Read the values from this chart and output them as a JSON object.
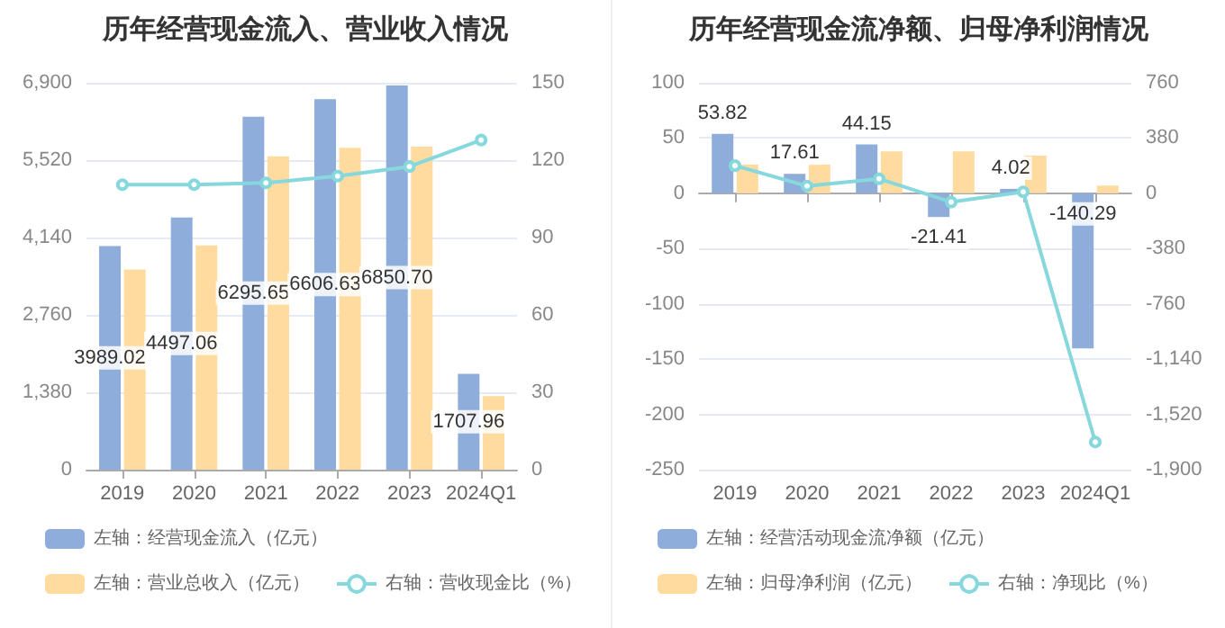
{
  "chart_data": [
    {
      "type": "bar",
      "title": "历年经营现金流入、营业收入情况",
      "categories": [
        "2019",
        "2020",
        "2021",
        "2022",
        "2023",
        "2024Q1"
      ],
      "series": [
        {
          "name": "左轴：经营现金流入（亿元）",
          "color": "#8eadda",
          "values": [
            3989.02,
            4497.06,
            6295.65,
            6606.63,
            6850.7,
            1707.96
          ],
          "value_labels": [
            "3989.02",
            "4497.06",
            "6295.65",
            "6606.63",
            "6850.70",
            "1707.96"
          ]
        },
        {
          "name": "左轴：营业总收入（亿元）",
          "color": "#ffdb9f",
          "values": [
            3570,
            4000,
            5590,
            5740,
            5760,
            1310
          ]
        },
        {
          "name": "右轴：营收现金比（%）",
          "type": "line",
          "axis": "y2",
          "color": "#86d8dc",
          "values": [
            110.5,
            110.5,
            111.2,
            113.8,
            117.5,
            127.8
          ]
        }
      ],
      "ylim": [
        0,
        6900
      ],
      "yticks": [
        0,
        {
          "value": 1380,
          "label": "1,380"
        },
        {
          "value": 2760,
          "label": "2,760"
        },
        {
          "value": 4140,
          "label": "4,140"
        },
        {
          "value": 5520,
          "label": "5,520"
        },
        {
          "value": 6900,
          "label": "6,900"
        }
      ],
      "y2lim": [
        0,
        150
      ],
      "y2ticks": [
        0,
        30,
        60,
        90,
        120,
        150
      ],
      "grid": "y",
      "legend": "bottom",
      "marker": "circle"
    },
    {
      "type": "bar",
      "title": "历年经营现金流净额、归母净利润情况",
      "categories": [
        "2019",
        "2020",
        "2021",
        "2022",
        "2023",
        "2024Q1"
      ],
      "series": [
        {
          "name": "左轴：经营活动现金流净额（亿元）",
          "color": "#8eadda",
          "values": [
            53.82,
            17.61,
            44.15,
            -21.41,
            4.02,
            -140.29
          ],
          "value_labels": [
            "53.82",
            "17.61",
            "44.15",
            "-21.41",
            "4.02",
            "-140.29"
          ]
        },
        {
          "name": "左轴：归母净利润（亿元）",
          "color": "#ffdb9f",
          "values": [
            26,
            26,
            38,
            38,
            34,
            7
          ]
        },
        {
          "name": "右轴：净现比（%）",
          "type": "line",
          "axis": "y2",
          "color": "#86d8dc",
          "values": [
            190,
            50,
            100,
            -60,
            10,
            -1710
          ]
        }
      ],
      "ylim": [
        -250,
        100
      ],
      "yticks": [
        -250,
        -200,
        -150,
        -100,
        -50,
        0,
        50,
        100
      ],
      "y2lim": [
        -1900,
        760
      ],
      "y2ticks": [
        {
          "value": -1900,
          "label": "-1,900"
        },
        {
          "value": -1520,
          "label": "-1,520"
        },
        {
          "value": -1140,
          "label": "-1,140"
        },
        -760,
        -380,
        0,
        380,
        760
      ],
      "grid": "y",
      "legend": "bottom",
      "marker": "circle"
    }
  ]
}
